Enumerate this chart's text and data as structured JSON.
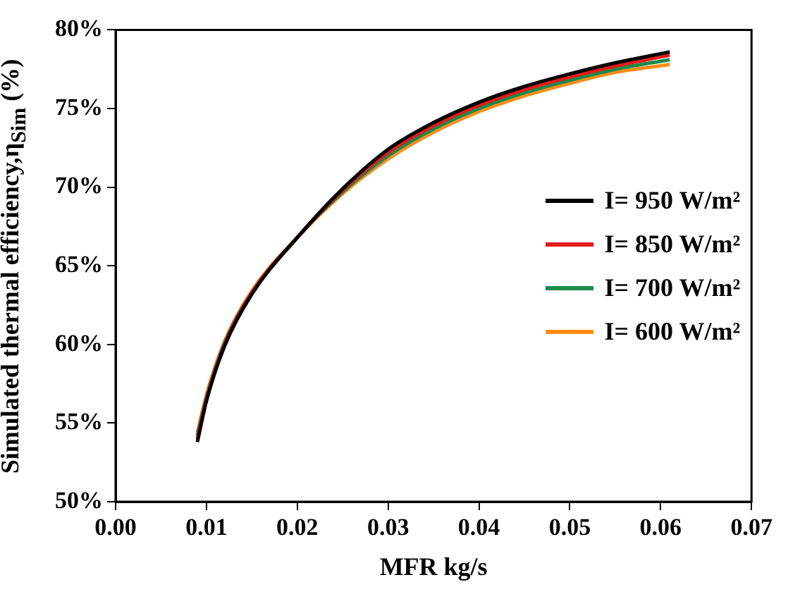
{
  "chart_data": {
    "type": "line",
    "xlabel": "MFR kg/s",
    "ylabel": "Simulated thermal efficiency,η$_{Sim}$ (%)",
    "x": [
      0.009,
      0.01,
      0.012,
      0.015,
      0.02,
      0.025,
      0.03,
      0.035,
      0.04,
      0.045,
      0.05,
      0.055,
      0.061
    ],
    "series": [
      {
        "name": "I= 950 W/m²",
        "color": "#000000",
        "values": [
          53.8,
          56.4,
          59.9,
          63.2,
          66.8,
          69.9,
          72.4,
          74.1,
          75.4,
          76.4,
          77.2,
          77.9,
          78.6
        ]
      },
      {
        "name": "I= 850 W/m²",
        "color": "#e41a1c",
        "values": [
          54.0,
          56.5,
          60.0,
          63.3,
          66.8,
          69.8,
          72.2,
          73.9,
          75.2,
          76.2,
          77.0,
          77.7,
          78.4
        ]
      },
      {
        "name": "I= 700 W/m²",
        "color": "#1a8a4a",
        "values": [
          54.2,
          56.6,
          60.1,
          63.3,
          66.8,
          69.7,
          72.0,
          73.7,
          75.0,
          76.0,
          76.8,
          77.5,
          78.1
        ]
      },
      {
        "name": "I= 600 W/m²",
        "color": "#ff8c1a",
        "values": [
          54.4,
          56.8,
          60.2,
          63.4,
          66.8,
          69.6,
          71.8,
          73.5,
          74.8,
          75.8,
          76.6,
          77.3,
          77.8
        ]
      }
    ],
    "xlim": [
      0,
      0.07
    ],
    "xticks": [
      {
        "value": 0,
        "label": "0.00"
      },
      {
        "value": 0.01,
        "label": "0.01"
      },
      {
        "value": 0.02,
        "label": "0.02"
      },
      {
        "value": 0.03,
        "label": "0.03"
      },
      {
        "value": 0.04,
        "label": "0.04"
      },
      {
        "value": 0.05,
        "label": "0.05"
      },
      {
        "value": 0.06,
        "label": "0.06"
      },
      {
        "value": 0.07,
        "label": "0.07"
      }
    ],
    "ylim": [
      50,
      80
    ],
    "yticks": [
      {
        "value": 50,
        "label": "50%"
      },
      {
        "value": 55,
        "label": "55%"
      },
      {
        "value": 60,
        "label": "60%"
      },
      {
        "value": 65,
        "label": "65%"
      },
      {
        "value": 70,
        "label": "70%"
      },
      {
        "value": 75,
        "label": "75%"
      },
      {
        "value": 80,
        "label": "80%"
      }
    ],
    "grid": false,
    "legend": "right",
    "marker": "none",
    "line_style": "solid"
  }
}
